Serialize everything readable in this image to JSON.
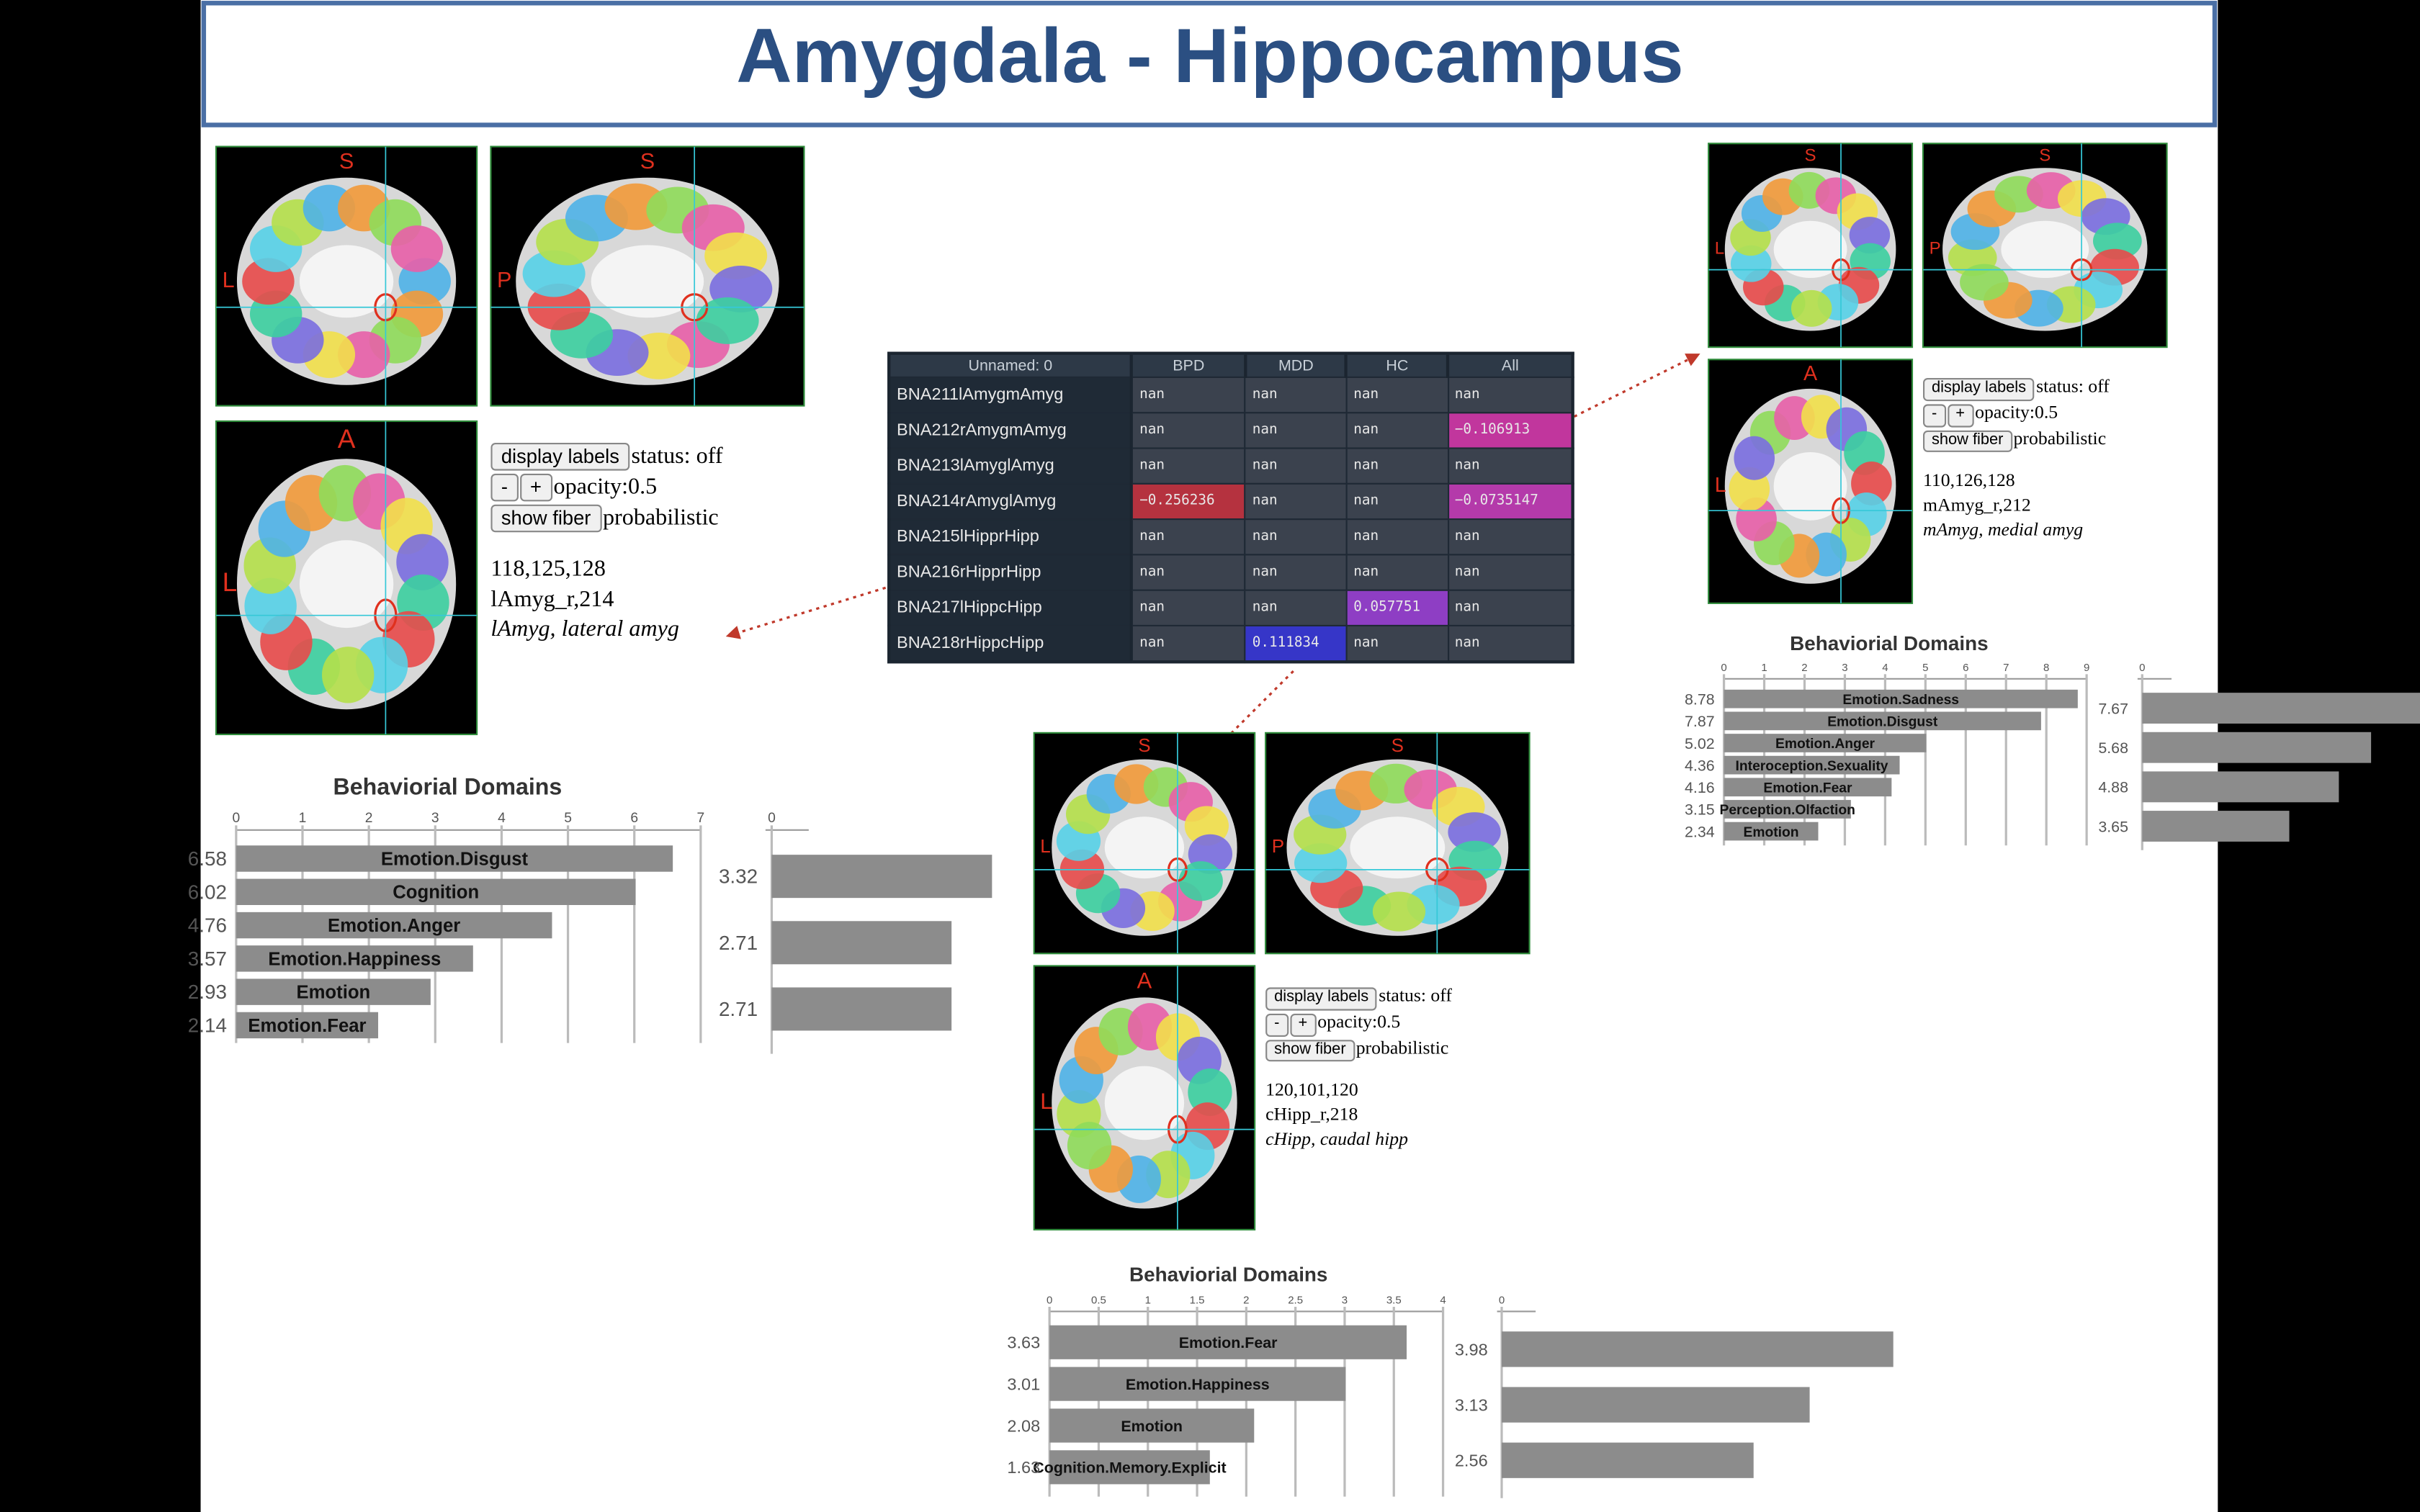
{
  "header": {
    "title": "Amygdala - Hippocampus"
  },
  "table": {
    "columns": [
      "Unnamed: 0",
      "BPD",
      "MDD",
      "HC",
      "All"
    ],
    "rows": [
      [
        "BNA211lAmygmAmyg",
        "nan",
        "nan",
        "nan",
        "nan"
      ],
      [
        "BNA212rAmygmAmyg",
        "nan",
        "nan",
        "nan",
        "−0.106913"
      ],
      [
        "BNA213lAmyglAmyg",
        "nan",
        "nan",
        "nan",
        "nan"
      ],
      [
        "BNA214rAmyglAmyg",
        "−0.256236",
        "nan",
        "nan",
        "−0.0735147"
      ],
      [
        "BNA215lHipprHipp",
        "nan",
        "nan",
        "nan",
        "nan"
      ],
      [
        "BNA216rHipprHipp",
        "nan",
        "nan",
        "nan",
        "nan"
      ],
      [
        "BNA217lHippcHipp",
        "nan",
        "nan",
        "0.057751",
        "nan"
      ],
      [
        "BNA218rHippcHipp",
        "nan",
        "0.111834",
        "nan",
        "nan"
      ]
    ],
    "cell_colors": [
      [
        null,
        null,
        null,
        null
      ],
      [
        null,
        null,
        null,
        "#c1369d"
      ],
      [
        null,
        null,
        null,
        null
      ],
      [
        "#b5323f",
        null,
        null,
        "#b43aaa"
      ],
      [
        null,
        null,
        null,
        null
      ],
      [
        null,
        null,
        null,
        null
      ],
      [
        null,
        null,
        "#8e3ec4",
        null
      ],
      [
        null,
        "#3636c8",
        null,
        null
      ]
    ]
  },
  "panels": [
    {
      "views": [
        {
          "top": "S",
          "side": "L"
        },
        {
          "top": "S",
          "side": "P"
        },
        {
          "top": "A",
          "side": "L"
        }
      ],
      "controls": {
        "display_labels": "display labels",
        "status": "status: off",
        "minus": "-",
        "plus": "+",
        "opacity": "opacity:0.5",
        "show_fiber": "show fiber",
        "fiber_mode": "probabilistic"
      },
      "coords": {
        "voxel": "118,125,128",
        "label": "lAmyg_r,214",
        "description": "lAmyg, lateral amyg"
      },
      "chart": {
        "type": "bar",
        "title": "Behaviorial Domains",
        "categories": [
          "Emotion.Disgust",
          "Cognition",
          "Emotion.Anger",
          "Emotion.Happiness",
          "Emotion",
          "Emotion.Fear"
        ],
        "values": [
          6.58,
          6.02,
          4.76,
          3.57,
          2.93,
          2.14
        ],
        "xlim": [
          0,
          7
        ],
        "xticks": [
          0,
          1,
          2,
          3,
          4,
          5,
          6,
          7
        ],
        "color": "#8c8c8c"
      },
      "side_chart": {
        "type": "bar",
        "values": [
          3.32,
          2.71,
          2.71
        ],
        "xlim": [
          0,
          7
        ],
        "xticks": [
          0
        ],
        "color": "#8c8c8c"
      }
    },
    {
      "views": [
        {
          "top": "S",
          "side": "L"
        },
        {
          "top": "S",
          "side": "P"
        },
        {
          "top": "A",
          "side": "L"
        }
      ],
      "controls": {
        "display_labels": "display labels",
        "status": "status: off",
        "minus": "-",
        "plus": "+",
        "opacity": "opacity:0.5",
        "show_fiber": "show fiber",
        "fiber_mode": "probabilistic"
      },
      "coords": {
        "voxel": "120,101,120",
        "label": "cHipp_r,218",
        "description": "cHipp, caudal hipp"
      },
      "chart": {
        "type": "bar",
        "title": "Behaviorial Domains",
        "categories": [
          "Emotion.Fear",
          "Emotion.Happiness",
          "Emotion",
          "Cognition.Memory.Explicit"
        ],
        "values": [
          3.63,
          3.01,
          2.08,
          1.63
        ],
        "xlim": [
          0,
          4
        ],
        "xticks": [
          0,
          0.5,
          1,
          1.5,
          2,
          2.5,
          3,
          3.5,
          4
        ],
        "color": "#8c8c8c"
      },
      "side_chart": {
        "type": "bar",
        "values": [
          3.98,
          3.13,
          2.56
        ],
        "xlim": [
          0,
          4
        ],
        "xticks": [
          0
        ],
        "color": "#8c8c8c"
      }
    },
    {
      "views": [
        {
          "top": "S",
          "side": "L"
        },
        {
          "top": "S",
          "side": "P"
        },
        {
          "top": "A",
          "side": "L"
        }
      ],
      "controls": {
        "display_labels": "display labels",
        "status": "status: off",
        "minus": "-",
        "plus": "+",
        "opacity": "opacity:0.5",
        "show_fiber": "show fiber",
        "fiber_mode": "probabilistic"
      },
      "coords": {
        "voxel": "110,126,128",
        "label": "mAmyg_r,212",
        "description": "mAmyg, medial amyg"
      },
      "chart": {
        "type": "bar",
        "title": "Behaviorial Domains",
        "categories": [
          "Emotion.Sadness",
          "Emotion.Disgust",
          "Emotion.Anger",
          "Interoception.Sexuality",
          "Emotion.Fear",
          "Perception.Olfaction",
          "Emotion"
        ],
        "values": [
          8.78,
          7.87,
          5.02,
          4.36,
          4.16,
          3.15,
          2.34
        ],
        "xlim": [
          0,
          9
        ],
        "xticks": [
          0,
          1,
          2,
          3,
          4,
          5,
          6,
          7,
          8,
          9
        ],
        "color": "#8c8c8c"
      },
      "side_chart": {
        "type": "bar",
        "values": [
          7.67,
          5.68,
          4.88,
          3.65
        ],
        "xlim": [
          0,
          9
        ],
        "xticks": [
          0
        ],
        "color": "#8c8c8c"
      }
    }
  ]
}
